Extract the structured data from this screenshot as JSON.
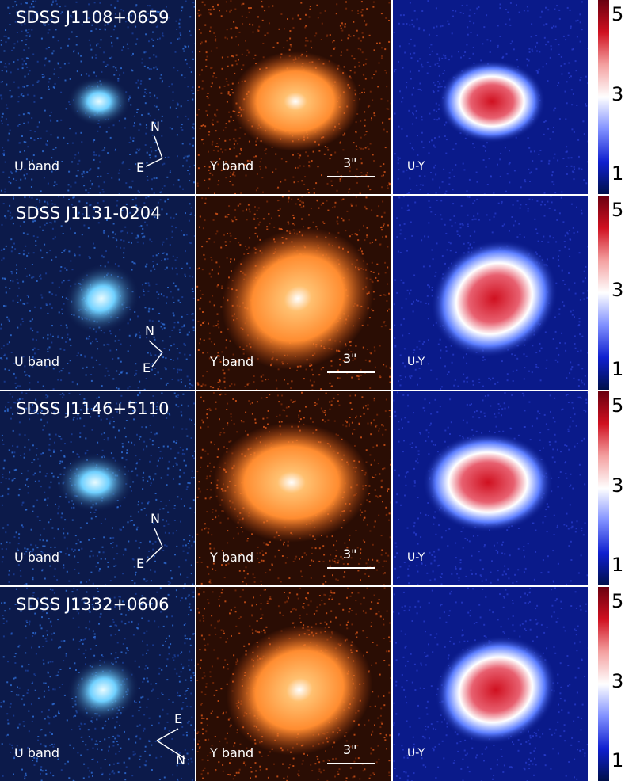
{
  "rows": [
    {
      "object": "SDSS J1108+0659",
      "compass_a": "N",
      "compass_b": "E"
    },
    {
      "object": "SDSS J1131-0204",
      "compass_a": "N",
      "compass_b": "E"
    },
    {
      "object": "SDSS J1146+5110",
      "compass_a": "N",
      "compass_b": "E"
    },
    {
      "object": "SDSS J1332+0606",
      "compass_a": "E",
      "compass_b": "N"
    }
  ],
  "bands": {
    "u": "U band",
    "y": "Y band",
    "uy": "U-Y"
  },
  "scale_label": "3\"",
  "colorbar_ticks": [
    "5",
    "3",
    "1"
  ],
  "colors": {
    "u_background": "#0c1a4a",
    "u_source": "#6fd0ff",
    "y_background": "#2a0d04",
    "y_source": "#ff8c30",
    "uy_background": "#0a1a8a",
    "uy_red": "#d01020",
    "divider": "#ffffff"
  }
}
